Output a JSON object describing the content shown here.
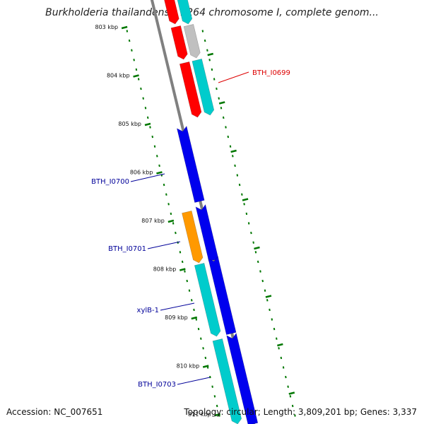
{
  "title": "Burkholderia thailandensis E264 chromosome I, complete genom...",
  "footer": {
    "accession": "Accession: NC_007651",
    "summary": "Topology: circular; Length: 3,809,201 bp; Genes: 3,337"
  },
  "colors": {
    "red": "#ff0000",
    "cyan": "#00cccc",
    "grey": "#c0c0c0",
    "blue": "#0000ee",
    "orange": "#ff9900",
    "backbone": "#808080",
    "ticks": "#007700",
    "label_red": "#dd0000",
    "label_blue": "#000099"
  },
  "ticks": [
    {
      "label": "803 kbp"
    },
    {
      "label": "804 kbp"
    },
    {
      "label": "805 kbp"
    },
    {
      "label": "806 kbp"
    },
    {
      "label": "807 kbp"
    },
    {
      "label": "808 kbp"
    },
    {
      "label": "809 kbp"
    },
    {
      "label": "810 kbp"
    },
    {
      "label": "811 kbp"
    }
  ],
  "gene_labels": [
    {
      "name": "BTH_I0699",
      "color": "red"
    },
    {
      "name": "BTH_I0700",
      "color": "blue"
    },
    {
      "name": "BTH_I0701",
      "color": "blue"
    },
    {
      "name": "xylB-1",
      "color": "blue"
    },
    {
      "name": "BTH_I0703",
      "color": "blue"
    }
  ]
}
